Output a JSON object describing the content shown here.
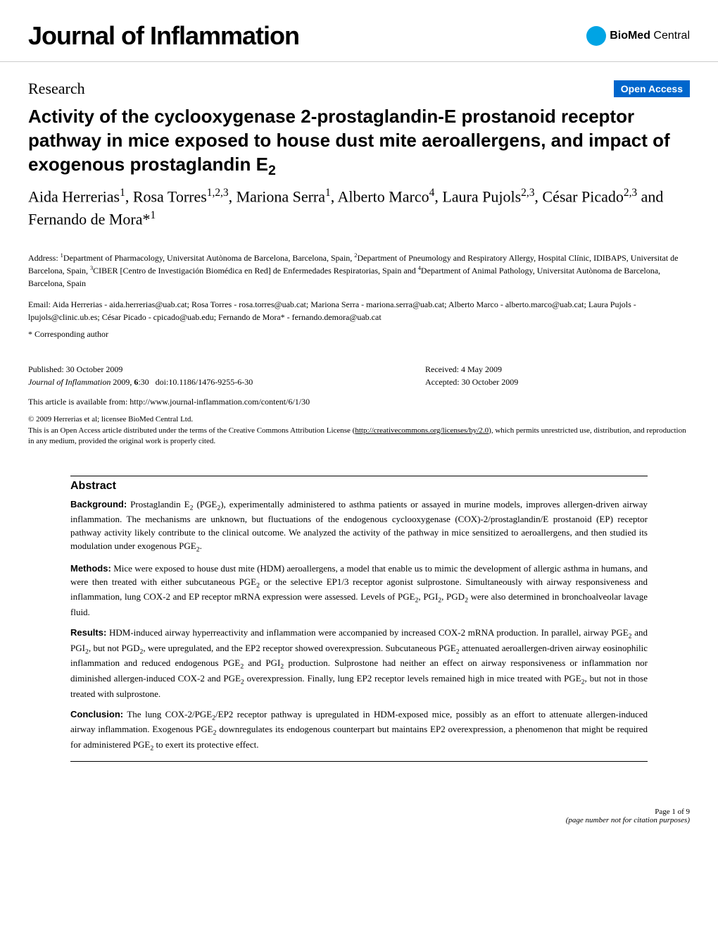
{
  "header": {
    "journal_title": "Journal of Inflammation",
    "logo_text_bold": "BioMed",
    "logo_text_normal": " Central",
    "logo_color": "#00a4e4"
  },
  "research": {
    "label": "Research",
    "open_access_label": "Open Access",
    "open_access_bg": "#0066cc"
  },
  "article": {
    "title_html": "Activity of the cyclooxygenase 2-prostaglandin-E prostanoid receptor pathway in mice exposed to house dust mite aeroallergens, and impact of exogenous prostaglandin E<sub class='sub'>2</sub>",
    "authors_html": "Aida Herrerias<span class='sup'>1</span>, Rosa Torres<span class='sup'>1,2,3</span>, Mariona Serra<span class='sup'>1</span>, Alberto Marco<span class='sup'>4</span>, Laura Pujols<span class='sup'>2,3</span>, César Picado<span class='sup'>2,3</span> and Fernando de Mora*<span class='sup'>1</span>"
  },
  "affiliations": {
    "text_html": "Address: <span class='sup'>1</span>Department of Pharmacology, Universitat Autònoma de Barcelona, Barcelona, Spain, <span class='sup'>2</span>Department of Pneumology and Respiratory Allergy, Hospital Clínic, IDIBAPS, Universitat de Barcelona, Spain, <span class='sup'>3</span>CIBER [Centro de Investigación Biomédica en Red] de Enfermedades Respiratorias, Spain and <span class='sup'>4</span>Department of Animal Pathology, Universitat Autònoma de Barcelona, Barcelona, Spain"
  },
  "emails": {
    "text": "Email: Aida Herrerias - aida.herrerias@uab.cat; Rosa Torres - rosa.torres@uab.cat; Mariona Serra - mariona.serra@uab.cat; Alberto Marco - alberto.marco@uab.cat; Laura Pujols - lpujols@clinic.ub.es; César Picado - cpicado@uab.edu; Fernando de Mora* - fernando.demora@uab.cat"
  },
  "corresponding": {
    "text": "* Corresponding author"
  },
  "publication": {
    "published": "Published: 30 October 2009",
    "received": "Received: 4 May 2009",
    "accepted": "Accepted: 30 October 2009",
    "journal_ref_html": "<span class='journal-ref-name'>Journal of Inflammation</span> 2009, <b>6</b>:30&nbsp;&nbsp;&nbsp;doi:10.1186/1476-9255-6-30",
    "url_text": "This article is available from: http://www.journal-inflammation.com/content/6/1/30"
  },
  "copyright": {
    "line1": "© 2009 Herrerias et al; licensee BioMed Central Ltd.",
    "line2_html": "This is an Open Access article distributed under the terms of the Creative Commons Attribution License (<a href='#'>http://creativecommons.org/licenses/by/2.0</a>), which permits unrestricted use, distribution, and reproduction in any medium, provided the original work is properly cited."
  },
  "abstract": {
    "heading": "Abstract",
    "sections": [
      {
        "label": "Background:",
        "text_html": " Prostaglandin E<sub class='sub'>2</sub> (PGE<sub class='sub'>2</sub>), experimentally administered to asthma patients or assayed in murine models, improves allergen-driven airway inflammation. The mechanisms are unknown, but fluctuations of the endogenous cyclooxygenase (COX)-2/prostaglandin/E prostanoid (EP) receptor pathway activity likely contribute to the clinical outcome. We analyzed the activity of the pathway in mice sensitized to aeroallergens, and then studied its modulation under exogenous PGE<sub class='sub'>2</sub>."
      },
      {
        "label": "Methods:",
        "text_html": " Mice were exposed to house dust mite (HDM) aeroallergens, a model that enable us to mimic the development of allergic asthma in humans, and were then treated with either subcutaneous PGE<sub class='sub'>2</sub> or the selective EP1/3 receptor agonist sulprostone. Simultaneously with airway responsiveness and inflammation, lung COX-2 and EP receptor mRNA expression were assessed. Levels of PGE<sub class='sub'>2</sub>, PGI<sub class='sub'>2</sub>, PGD<sub class='sub'>2</sub> were also determined in bronchoalveolar lavage fluid."
      },
      {
        "label": "Results:",
        "text_html": " HDM-induced airway hyperreactivity and inflammation were accompanied by increased COX-2 mRNA production. In parallel, airway PGE<sub class='sub'>2</sub> and PGI<sub class='sub'>2</sub>, but not PGD<sub class='sub'>2</sub>, were upregulated, and the EP2 receptor showed overexpression. Subcutaneous PGE<sub class='sub'>2</sub> attenuated aeroallergen-driven airway eosinophilic inflammation and reduced endogenous PGE<sub class='sub'>2</sub> and PGI<sub class='sub'>2</sub> production. Sulprostone had neither an effect on airway responsiveness or inflammation nor diminished allergen-induced COX-2 and PGE<sub class='sub'>2</sub> overexpression. Finally, lung EP2 receptor levels remained high in mice treated with PGE<sub class='sub'>2</sub>, but not in those treated with sulprostone."
      },
      {
        "label": "Conclusion:",
        "text_html": " The lung COX-2/PGE<sub class='sub'>2</sub>/EP2 receptor pathway is upregulated in HDM-exposed mice, possibly as an effort to attenuate allergen-induced airway inflammation. Exogenous PGE<sub class='sub'>2</sub> downregulates its endogenous counterpart but maintains EP2 overexpression, a phenomenon that might be required for administered PGE<sub class='sub'>2</sub> to exert its protective effect."
      }
    ]
  },
  "footer": {
    "page": "Page 1 of 9",
    "note": "(page number not for citation purposes)"
  },
  "styling": {
    "body_width": 1020,
    "body_height": 1324,
    "background": "#ffffff",
    "text_color": "#000000",
    "accent_blue": "#0066cc",
    "border_gray": "#cccccc",
    "title_font": "Arial, Helvetica, sans-serif",
    "body_font": "Georgia, 'Times New Roman', serif",
    "journal_title_fontsize": 36,
    "article_title_fontsize": 26,
    "authors_fontsize": 22,
    "affiliations_fontsize": 12,
    "abstract_fontsize": 13,
    "footer_fontsize": 11
  }
}
